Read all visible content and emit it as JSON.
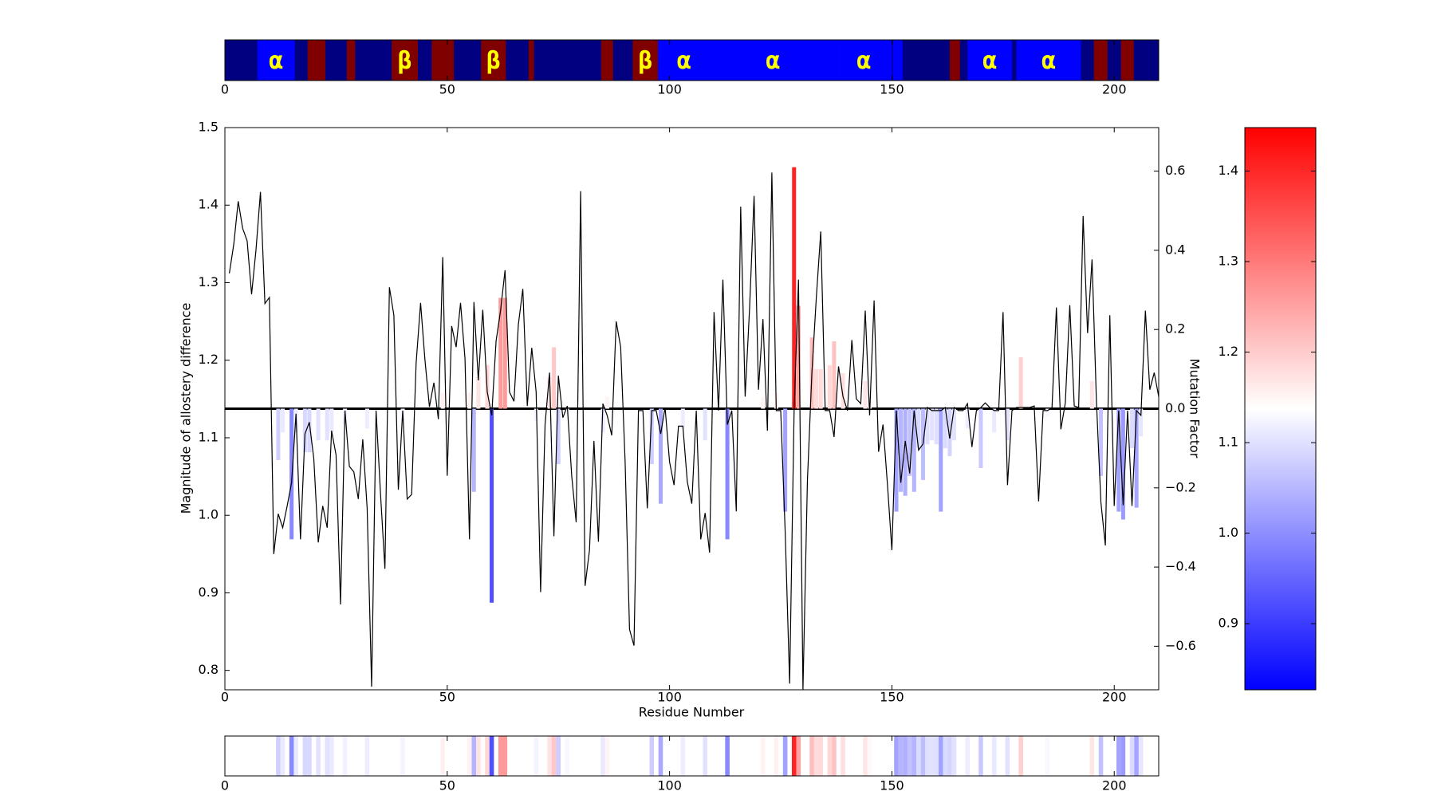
{
  "chart_data": {
    "type": "combo",
    "x_label": "Residue Number",
    "y_label": "Magnitude of allostery difference",
    "y2_label": "Mutation Factor",
    "xlim": [
      0,
      210
    ],
    "xticks": [
      0,
      50,
      100,
      150,
      200
    ],
    "ylim": [
      0.775,
      1.5
    ],
    "yticks": [
      0.8,
      0.9,
      {
        "value": 1,
        "label": "1.0"
      },
      1.1,
      1.2,
      1.3,
      1.4,
      1.5
    ],
    "y2lim": [
      -0.71,
      0.71
    ],
    "y2ticks": [
      {
        "value": -0.6,
        "label": "−0.6"
      },
      {
        "value": -0.4,
        "label": "−0.4"
      },
      {
        "value": -0.2,
        "label": "−0.2"
      },
      {
        "value": 0,
        "label": "0.0"
      },
      0.2,
      0.4,
      0.6
    ],
    "colorbar": {
      "lim": [
        0.827,
        1.448
      ],
      "ticks": [
        0.9,
        {
          "value": 1,
          "label": "1.0"
        },
        1.1,
        1.2,
        1.3,
        1.4
      ]
    },
    "structure": {
      "background": "#000080",
      "label_color": "#ffff00",
      "segments": [
        {
          "start": 7.3,
          "end": 15.7,
          "color": "#0000ff",
          "label": "α"
        },
        {
          "start": 18.6,
          "end": 22.6,
          "color": "#800000"
        },
        {
          "start": 27.4,
          "end": 29.3,
          "color": "#800000"
        },
        {
          "start": 37.5,
          "end": 43.4,
          "color": "#800000",
          "label": "β"
        },
        {
          "start": 46.5,
          "end": 51.5,
          "color": "#800000"
        },
        {
          "start": 57.6,
          "end": 63.2,
          "color": "#800000",
          "label": "β"
        },
        {
          "start": 68.3,
          "end": 69.5,
          "color": "#800000"
        },
        {
          "start": 84.6,
          "end": 87.3,
          "color": "#800000"
        },
        {
          "start": 91.7,
          "end": 97.4,
          "color": "#800000",
          "label": "β"
        },
        {
          "start": 97.4,
          "end": 109.1,
          "color": "#0000ff",
          "label": "α"
        },
        {
          "start": 109.1,
          "end": 137.4,
          "color": "#0000ff",
          "label": "α"
        },
        {
          "start": 137.4,
          "end": 150,
          "color": "#0000ff",
          "label": "α"
        },
        {
          "start": 150.2,
          "end": 152.4,
          "color": "#0000ff"
        },
        {
          "start": 163,
          "end": 165.3,
          "color": "#800000"
        },
        {
          "start": 167,
          "end": 177,
          "color": "#0000ff",
          "label": "α"
        },
        {
          "start": 178,
          "end": 192.5,
          "color": "#0000ff",
          "label": "α"
        },
        {
          "start": 195.4,
          "end": 198.5,
          "color": "#800000"
        },
        {
          "start": 201.5,
          "end": 204.4,
          "color": "#800000"
        }
      ]
    },
    "line": {
      "color": "#000000",
      "x": [
        1,
        2,
        3,
        4,
        5,
        6,
        7,
        8,
        9,
        10,
        11,
        12,
        13,
        14,
        15,
        16,
        17,
        18,
        19,
        20,
        21,
        22,
        23,
        24,
        25,
        26,
        27,
        28,
        29,
        30,
        31,
        32,
        33,
        34,
        35,
        36,
        37,
        38,
        39,
        40,
        41,
        42,
        43,
        44,
        45,
        46,
        47,
        48,
        49,
        50,
        51,
        52,
        53,
        54,
        55,
        56,
        57,
        58,
        59,
        60,
        61,
        62,
        63,
        64,
        65,
        66,
        67,
        68,
        69,
        70,
        71,
        72,
        73,
        74,
        75,
        76,
        77,
        78,
        79,
        80,
        81,
        82,
        83,
        84,
        85,
        86,
        87,
        88,
        89,
        90,
        91,
        92,
        93,
        94,
        95,
        96,
        97,
        98,
        99,
        100,
        101,
        102,
        103,
        104,
        105,
        106,
        107,
        108,
        109,
        110,
        111,
        112,
        113,
        114,
        115,
        116,
        117,
        118,
        119,
        120,
        121,
        122,
        123,
        124,
        125,
        126,
        127,
        128,
        129,
        130,
        131,
        132,
        133,
        134,
        135,
        136,
        137,
        138,
        139,
        140,
        141,
        142,
        143,
        144,
        145,
        146,
        147,
        148,
        149,
        150,
        151,
        152,
        153,
        154,
        155,
        156,
        157,
        158,
        159,
        160,
        161,
        162,
        163,
        164,
        165,
        166,
        167,
        168,
        169,
        170,
        171,
        172,
        173,
        174,
        175,
        176,
        177,
        178,
        179,
        180,
        181,
        182,
        183,
        184,
        185,
        186,
        187,
        188,
        189,
        190,
        191,
        192,
        193,
        194,
        195,
        196,
        197,
        198,
        199,
        200,
        201,
        202,
        203,
        204,
        205,
        206,
        207,
        208,
        209,
        210
      ],
      "values": [
        1.312,
        1.35,
        1.405,
        1.37,
        1.354,
        1.285,
        1.342,
        1.417,
        1.273,
        1.281,
        0.95,
        1.002,
        0.984,
        1.012,
        1.042,
        1.131,
        0.969,
        1.105,
        1.12,
        1.073,
        0.965,
        1.012,
        0.984,
        1.109,
        1.078,
        0.885,
        1.135,
        1.063,
        1.056,
        1.021,
        1.098,
        1.009,
        0.779,
        1.135,
        1.027,
        0.931,
        1.294,
        1.258,
        1.033,
        1.135,
        1.021,
        1.027,
        1.196,
        1.274,
        1.2,
        1.14,
        1.171,
        1.124,
        1.333,
        1.051,
        1.244,
        1.217,
        1.274,
        1.202,
        0.969,
        1.275,
        1.174,
        1.265,
        1.159,
        1.129,
        1.225,
        1.264,
        1.316,
        1.159,
        1.147,
        1.246,
        1.292,
        1.141,
        1.216,
        1.159,
        0.901,
        1.117,
        1.184,
        0.973,
        1.18,
        1.126,
        1.141,
        1.051,
        0.991,
        1.418,
        0.909,
        0.955,
        1.096,
        0.966,
        1.144,
        1.128,
        1.103,
        1.25,
        1.217,
        1.069,
        0.853,
        0.832,
        1.135,
        1.135,
        1.009,
        1.135,
        1.135,
        1.105,
        1.139,
        1.069,
        1.039,
        1.115,
        1.115,
        1.043,
        1.015,
        1.135,
        0.969,
        1.003,
        0.952,
        1.262,
        1.135,
        1.304,
        1.117,
        1.135,
        1.005,
        1.398,
        1.153,
        1.268,
        1.412,
        1.162,
        1.253,
        1.109,
        1.442,
        1.135,
        1.135,
        0.979,
        0.783,
        1.135,
        1.304,
        0.775,
        1.045,
        1.184,
        1.28,
        1.366,
        1.135,
        1.135,
        1.101,
        1.192,
        1.153,
        1.135,
        1.226,
        1.15,
        1.144,
        1.264,
        1.129,
        1.277,
        1.082,
        1.117,
        1.039,
        0.955,
        1.135,
        1.042,
        1.096,
        1.054,
        1.135,
        1.084,
        1.092,
        1.139,
        1.135,
        1.135,
        1.135,
        1.139,
        1.099,
        1.139,
        1.135,
        1.135,
        1.144,
        1.088,
        1.135,
        1.139,
        1.145,
        1.139,
        1.135,
        1.135,
        1.262,
        1.039,
        1.135,
        1.139,
        1.139,
        1.139,
        1.139,
        1.141,
        1.018,
        1.135,
        1.135,
        1.139,
        1.268,
        1.111,
        1.145,
        1.271,
        1.141,
        1.139,
        1.386,
        1.235,
        1.33,
        1.147,
        1.017,
        0.961,
        1.258,
        1.012,
        1.135,
        1.013,
        1.135,
        1.012,
        1.135,
        1.129,
        1.264,
        1.162,
        1.184,
        1.153
      ]
    },
    "bars": {
      "axis": "y2",
      "x": [
        12,
        13,
        15,
        16,
        18,
        19,
        21,
        23,
        24,
        27,
        32,
        40,
        49,
        55,
        56,
        57,
        59,
        60,
        62,
        63,
        70,
        73,
        74,
        75,
        77,
        85,
        86,
        96,
        98,
        103,
        108,
        113,
        121,
        124,
        126,
        128,
        129,
        132,
        133,
        134,
        136,
        137,
        139,
        144,
        145,
        151,
        152,
        153,
        154,
        155,
        156,
        157,
        158,
        159,
        160,
        161,
        162,
        163,
        164,
        167,
        170,
        173,
        176,
        179,
        185,
        195,
        197,
        201,
        202,
        204,
        205,
        206
      ],
      "values": [
        -0.13,
        -0.06,
        -0.33,
        -0.06,
        -0.11,
        -0.11,
        -0.08,
        -0.08,
        -0.06,
        -0.04,
        -0.05,
        -0.03,
        0.04,
        0.04,
        -0.21,
        0.08,
        0.11,
        -0.49,
        0.28,
        0.28,
        -0.03,
        0.08,
        0.155,
        -0.14,
        -0.02,
        -0.06,
        0.03,
        -0.14,
        -0.24,
        -0.05,
        -0.08,
        -0.33,
        0.03,
        0.04,
        -0.26,
        0.61,
        0.26,
        0.18,
        0.1,
        0.1,
        0.11,
        0.17,
        0.09,
        0.07,
        0.02,
        -0.26,
        -0.21,
        -0.22,
        -0.17,
        -0.21,
        -0.1,
        -0.18,
        -0.09,
        -0.08,
        -0.09,
        -0.26,
        -0.1,
        -0.12,
        -0.08,
        -0.05,
        -0.15,
        -0.06,
        -0.08,
        0.13,
        -0.02,
        0.07,
        -0.17,
        -0.26,
        -0.28,
        -0.1,
        -0.25,
        -0.07
      ]
    }
  }
}
